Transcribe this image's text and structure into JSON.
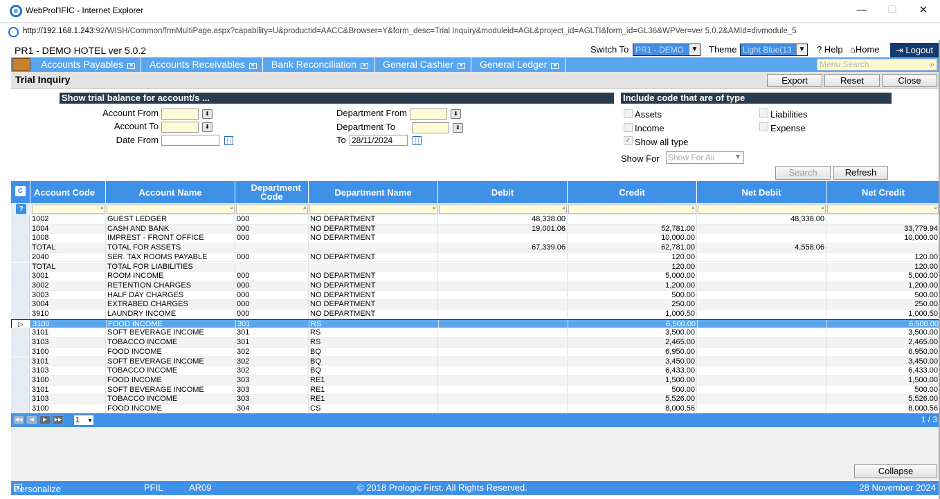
{
  "window": {
    "title": "WebProl'IFIC - Internet Explorer",
    "minimize": "—",
    "maximize": "☐",
    "close": "✕"
  },
  "address": {
    "host": "http://192.168.1.243",
    "path": ":92/WISH/Common/frmMultiPage.aspx?capability=U&productid=AACC&Browser=Y&form_desc=Trial Inquiry&moduleid=AGL&project_id=AGLTI&form_id=GL36&WPVer=ver 5.0.2&AMId=divmodule_5"
  },
  "header": {
    "app_title": "PR1 - DEMO HOTEL ver 5.0.2",
    "switch_label": "Switch To",
    "switch_value": "PR1 - DEMO",
    "theme_label": "Theme",
    "theme_value": "Light Blue(13",
    "help": "? Help",
    "home": "Home",
    "logout": "Logout"
  },
  "menu": {
    "items": [
      "Accounts Payables",
      "Accounts Receivables",
      "Bank Reconciliation",
      "General Cashier",
      "General Ledger"
    ],
    "search_placeholder": "Menu Search"
  },
  "page": {
    "title": "Trial Inquiry",
    "export": "Export",
    "reset": "Reset",
    "close": "Close"
  },
  "filter": {
    "section1": "Show trial balance for account/s ...",
    "section2": "Include code that are of type",
    "account_from": "Account From",
    "account_to": "Account To",
    "date_from": "Date From",
    "dept_from": "Department From",
    "dept_to": "Department To",
    "to": "To",
    "to_value": "28/11/2024",
    "assets": "Assets",
    "liabilities": "Liabilities",
    "income": "Income",
    "expense": "Expense",
    "show_all": "Show all type",
    "show_for": "Show For",
    "show_for_value": "Show For All",
    "search": "Search",
    "refresh": "Refresh"
  },
  "grid": {
    "columns": [
      "Account Code",
      "Account Name",
      "Department Code",
      "Department Name",
      "Debit",
      "Credit",
      "Net Debit",
      "Net Credit"
    ],
    "rows": [
      [
        "1002",
        "GUEST LEDGER",
        "000",
        "NO DEPARTMENT",
        "48,338.00",
        "",
        "48,338.00",
        ""
      ],
      [
        "1004",
        "CASH AND BANK",
        "000",
        "NO DEPARTMENT",
        "19,001.06",
        "52,781.00",
        "",
        "33,779.94"
      ],
      [
        "1008",
        "IMPREST - FRONT OFFICE",
        "000",
        "NO DEPARTMENT",
        "",
        "10,000.00",
        "",
        "10,000.00"
      ],
      [
        "TOTAL",
        "TOTAL FOR ASSETS",
        "",
        "",
        "67,339.06",
        "62,781.00",
        "4,558.06",
        ""
      ],
      [
        "2040",
        "SER. TAX ROOMS PAYABLE",
        "000",
        "NO DEPARTMENT",
        "",
        "120.00",
        "",
        "120.00"
      ],
      [
        "TOTAL",
        "TOTAL FOR LIABILITIES",
        "",
        "",
        "",
        "120.00",
        "",
        "120.00"
      ],
      [
        "3001",
        "ROOM INCOME",
        "000",
        "NO DEPARTMENT",
        "",
        "5,000.00",
        "",
        "5,000.00"
      ],
      [
        "3002",
        "RETENTION CHARGES",
        "000",
        "NO DEPARTMENT",
        "",
        "1,200.00",
        "",
        "1,200.00"
      ],
      [
        "3003",
        "HALF DAY CHARGES",
        "000",
        "NO DEPARTMENT",
        "",
        "500.00",
        "",
        "500.00"
      ],
      [
        "3004",
        "EXTRABED CHARGES",
        "000",
        "NO DEPARTMENT",
        "",
        "250.00",
        "",
        "250.00"
      ],
      [
        "3910",
        "LAUNDRY INCOME",
        "000",
        "NO DEPARTMENT",
        "",
        "1,000.50",
        "",
        "1,000.50"
      ],
      [
        "3100",
        "FOOD INCOME",
        "301",
        "RS",
        "",
        "6,500.00",
        "",
        "6,500.00"
      ],
      [
        "3101",
        "SOFT BEVERAGE INCOME",
        "301",
        "RS",
        "",
        "3,500.00",
        "",
        "3,500.00"
      ],
      [
        "3103",
        "TOBACCO INCOME",
        "301",
        "RS",
        "",
        "2,465.00",
        "",
        "2,465.00"
      ],
      [
        "3100",
        "FOOD INCOME",
        "302",
        "BQ",
        "",
        "6,950.00",
        "",
        "6,950.00"
      ],
      [
        "3101",
        "SOFT BEVERAGE INCOME",
        "302",
        "BQ",
        "",
        "3,450.00",
        "",
        "3,450.00"
      ],
      [
        "3103",
        "TOBACCO INCOME",
        "302",
        "BQ",
        "",
        "6,433.00",
        "",
        "6,433.00"
      ],
      [
        "3100",
        "FOOD INCOME",
        "303",
        "RE1",
        "",
        "1,500.00",
        "",
        "1,500.00"
      ],
      [
        "3101",
        "SOFT BEVERAGE INCOME",
        "303",
        "RE1",
        "",
        "500.00",
        "",
        "500.00"
      ],
      [
        "3103",
        "TOBACCO INCOME",
        "303",
        "RE1",
        "",
        "5,526.00",
        "",
        "5,526.00"
      ],
      [
        "3100",
        "FOOD INCOME",
        "304",
        "CS",
        "",
        "8,000.56",
        "",
        "8,000.56"
      ]
    ],
    "selected_row": 11,
    "page_value": "1",
    "page_info": "1 / 3"
  },
  "collapse": "Collapse",
  "footer": {
    "personalize": "Personalize",
    "code1": "PFIL",
    "code2": "AR09",
    "copyright": "© 2018 Prologic First. All Rights Reserved.",
    "date": "28 November 2024"
  },
  "colors": {
    "accent": "#3f91e7",
    "menu": "#5aa6ee",
    "section": "#2a3d50",
    "logout": "#123a6e"
  }
}
